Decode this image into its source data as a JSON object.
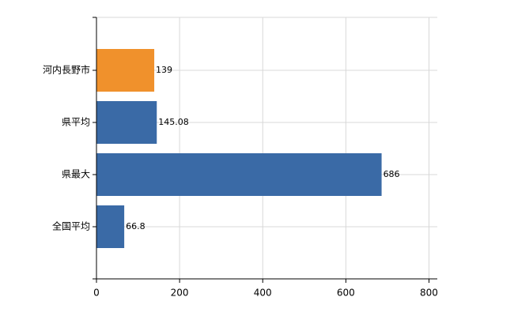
{
  "chart_data": {
    "type": "bar",
    "orientation": "horizontal",
    "categories": [
      "河内長野市",
      "県平均",
      "県最大",
      "全国平均"
    ],
    "values": [
      139,
      145.08,
      686,
      66.8
    ],
    "colors": [
      "#f0912c",
      "#3a6aa6",
      "#3a6aa6",
      "#3a6aa6"
    ],
    "xlim": [
      0,
      820
    ],
    "xticks": [
      0,
      200,
      400,
      600,
      800
    ],
    "grid": true
  }
}
